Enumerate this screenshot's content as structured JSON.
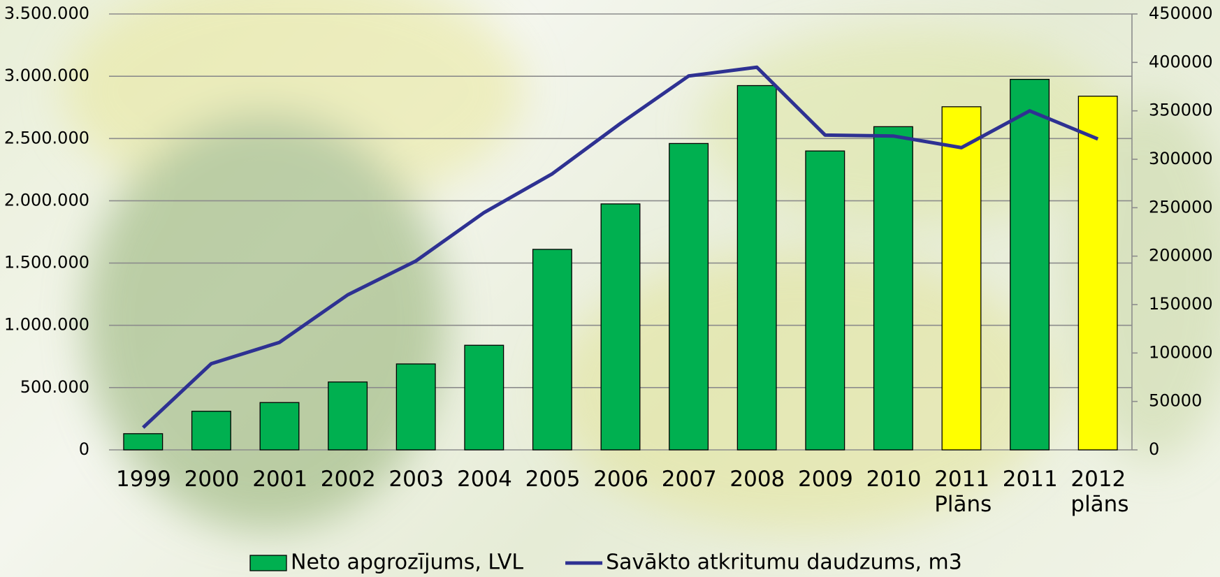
{
  "chart_data": {
    "type": "bar",
    "categories": [
      "1999",
      "2000",
      "2001",
      "2002",
      "2003",
      "2004",
      "2005",
      "2006",
      "2007",
      "2008",
      "2009",
      "2010",
      "2011 Plāns",
      "2011",
      "2012 plāns"
    ],
    "series": [
      {
        "name": "Neto apgrozījums, LVL",
        "type": "bar",
        "color": "#00b050",
        "colors": [
          "#00b050",
          "#00b050",
          "#00b050",
          "#00b050",
          "#00b050",
          "#00b050",
          "#00b050",
          "#00b050",
          "#00b050",
          "#00b050",
          "#00b050",
          "#00b050",
          "#ffff00",
          "#00b050",
          "#ffff00"
        ],
        "values": [
          130000,
          310000,
          380000,
          545000,
          690000,
          840000,
          1610000,
          1975000,
          2460000,
          2925000,
          2400000,
          2595000,
          2755000,
          2975000,
          2840000
        ]
      },
      {
        "name": "Savākto atkritumu daudzums, m3",
        "type": "line",
        "axis": "y2",
        "color": "#2e3192",
        "values": [
          23000,
          89000,
          111000,
          160000,
          195000,
          245000,
          285000,
          337000,
          386000,
          395000,
          325000,
          324000,
          312000,
          350000,
          321000
        ]
      }
    ],
    "ylim": [
      0,
      3500000
    ],
    "yticks": [
      {
        "value": 0,
        "label": "0"
      },
      {
        "value": 500000,
        "label": "500.000"
      },
      {
        "value": 1000000,
        "label": "1.000.000"
      },
      {
        "value": 1500000,
        "label": "1.500.000"
      },
      {
        "value": 2000000,
        "label": "2.000.000"
      },
      {
        "value": 2500000,
        "label": "2.500.000"
      },
      {
        "value": 3000000,
        "label": "3.000.000"
      },
      {
        "value": 3500000,
        "label": "3.500.000"
      }
    ],
    "y2lim": [
      0,
      450000
    ],
    "y2ticks": [
      0,
      50000,
      100000,
      150000,
      200000,
      250000,
      300000,
      350000,
      400000,
      450000
    ],
    "grid": true,
    "legend": "bottom"
  }
}
